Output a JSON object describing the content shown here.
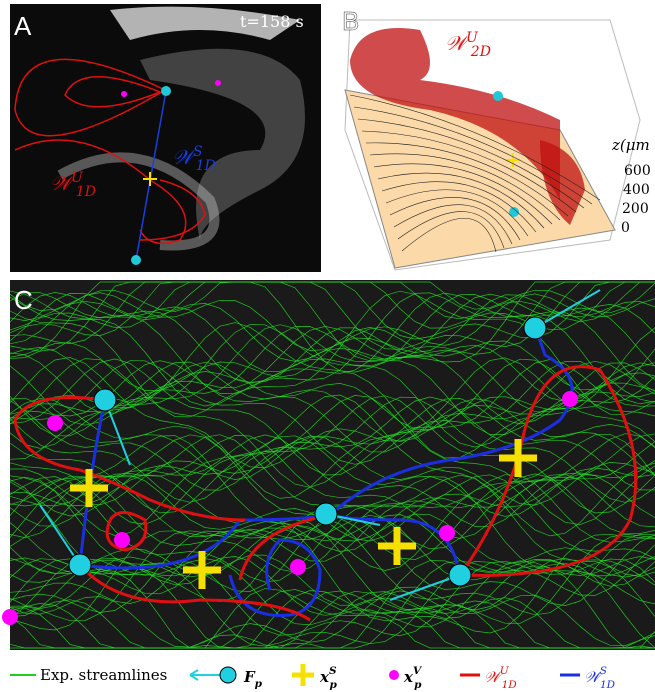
{
  "panels": {
    "a": {
      "label": "A",
      "time": "t=158 s",
      "unstable": {
        "base": "𝒲",
        "sup": "U",
        "sub": "1D"
      },
      "stable": {
        "base": "𝒲",
        "sup": "S",
        "sub": "1D"
      }
    },
    "b": {
      "label": "B",
      "surface": {
        "base": "𝒲",
        "sup": "U",
        "sub": "2D"
      },
      "z_axis": {
        "title": "z(μm",
        "ticks": [
          "600",
          "400",
          "200",
          "0"
        ]
      }
    },
    "c": {
      "label": "C"
    }
  },
  "legend": [
    {
      "text": "Exp. streamlines"
    },
    {
      "base": "F",
      "sub": "p"
    },
    {
      "base": "x",
      "sup": "S",
      "sub": "p"
    },
    {
      "base": "x",
      "sup": "V",
      "sub": "p"
    },
    {
      "base": "𝒲",
      "sup": "U",
      "sub": "1D"
    },
    {
      "base": "𝒲",
      "sup": "S",
      "sub": "1D"
    }
  ]
}
